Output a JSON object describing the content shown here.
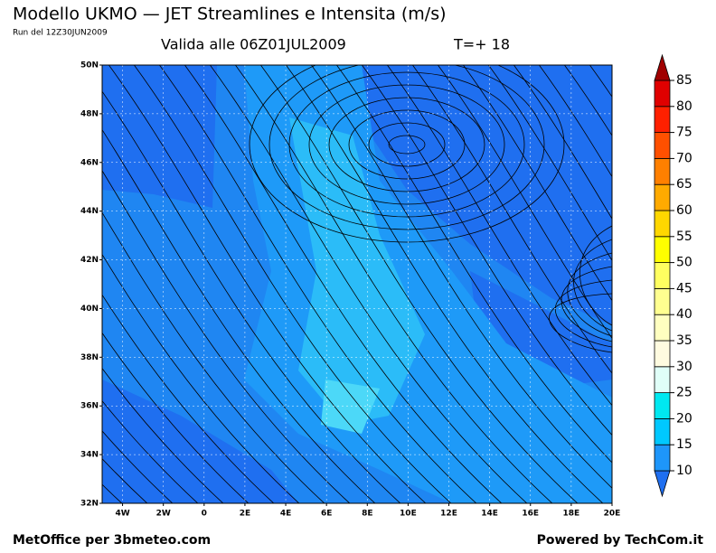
{
  "header": {
    "title": "Modello UKMO — JET Streamlines e Intensita (m/s)",
    "run": "Run del 12Z30JUN2009",
    "valid": "Valida alle 06Z01JUL2009",
    "lead": "T=+ 18"
  },
  "map": {
    "lat_labels": [
      "50N",
      "48N",
      "46N",
      "44N",
      "42N",
      "40N",
      "38N",
      "36N",
      "34N",
      "32N"
    ],
    "lon_labels": [
      "4W",
      "2W",
      "0",
      "2E",
      "4E",
      "6E",
      "8E",
      "10E",
      "12E",
      "14E",
      "16E",
      "18E",
      "20E"
    ]
  },
  "colorbar": {
    "levels": [
      10,
      15,
      20,
      25,
      30,
      35,
      40,
      45,
      50,
      55,
      60,
      65,
      70,
      75,
      80,
      85
    ],
    "colors": [
      "#1f6ff0",
      "#1e96fa",
      "#00c8ff",
      "#00e8f0",
      "#e0fff8",
      "#fffbe0",
      "#ffffc0",
      "#ffff90",
      "#ffff60",
      "#ffff00",
      "#ffd700",
      "#ffaa00",
      "#ff8000",
      "#ff5000",
      "#ff2000",
      "#e00000",
      "#a00000"
    ]
  },
  "footer": {
    "left": "MetOffice per 3bmeteo.com",
    "right": "Powered by TechCom.it"
  }
}
